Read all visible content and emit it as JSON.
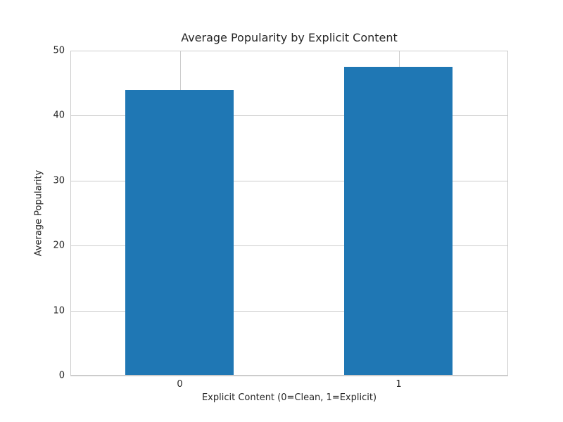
{
  "chart_data": {
    "type": "bar",
    "title": "Average Popularity by Explicit Content",
    "xlabel": "Explicit Content (0=Clean, 1=Explicit)",
    "ylabel": "Average Popularity",
    "categories": [
      "0",
      "1"
    ],
    "values": [
      43.9,
      47.5
    ],
    "ylim": [
      0,
      50
    ],
    "yticks": [
      0,
      10,
      20,
      30,
      40,
      50
    ],
    "grid": true,
    "legend": false,
    "bar_rel_width": 0.2476,
    "colors": {
      "bar": "#1f77b4",
      "grid": "#cccccc",
      "spine": "#cccccc",
      "text": "#262626",
      "background": "#ffffff"
    }
  }
}
